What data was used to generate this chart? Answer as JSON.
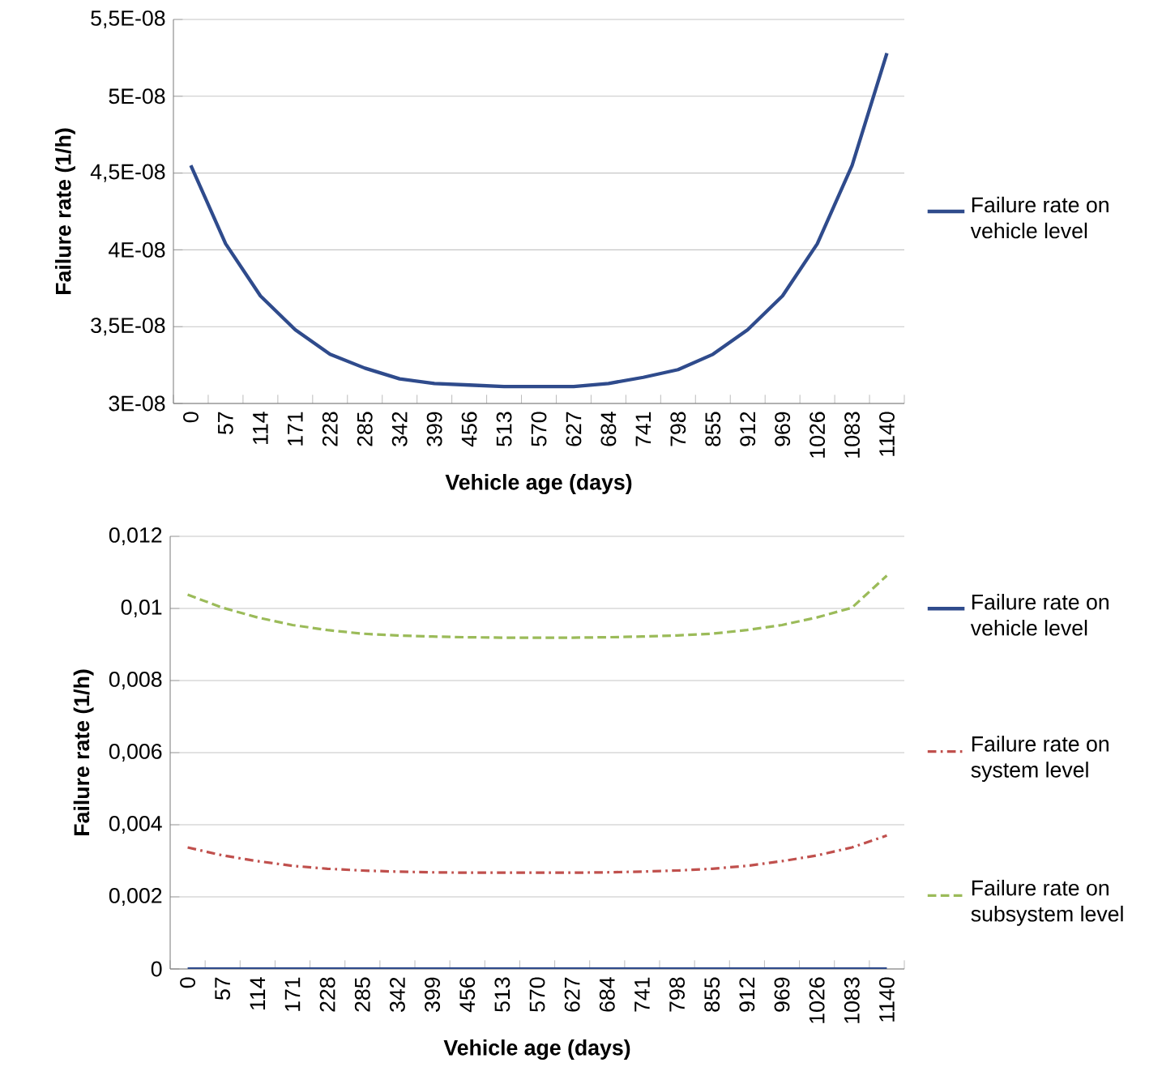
{
  "chart_data": [
    {
      "type": "line",
      "xlabel": "Vehicle age (days)",
      "ylabel": "Failure rate (1/h)",
      "categories": [
        "0",
        "57",
        "114",
        "171",
        "228",
        "285",
        "342",
        "399",
        "456",
        "513",
        "570",
        "627",
        "684",
        "741",
        "798",
        "855",
        "912",
        "969",
        "1026",
        "1083",
        "1140"
      ],
      "series": [
        {
          "name": "Failure rate on vehicle level",
          "color": "#2f4b8c",
          "line_style": "solid",
          "values": [
            4.55e-08,
            4.04e-08,
            3.7e-08,
            3.48e-08,
            3.32e-08,
            3.23e-08,
            3.16e-08,
            3.13e-08,
            3.12e-08,
            3.11e-08,
            3.11e-08,
            3.11e-08,
            3.13e-08,
            3.17e-08,
            3.22e-08,
            3.32e-08,
            3.48e-08,
            3.7e-08,
            4.04e-08,
            4.55e-08,
            5.28e-08
          ]
        }
      ],
      "ylim": [
        3e-08,
        5.5e-08
      ],
      "yticks": [
        {
          "value": 3e-08,
          "label": "3E-08"
        },
        {
          "value": 3.5e-08,
          "label": "3,5E-08"
        },
        {
          "value": 4e-08,
          "label": "4E-08"
        },
        {
          "value": 4.5e-08,
          "label": "4,5E-08"
        },
        {
          "value": 5e-08,
          "label": "5E-08"
        },
        {
          "value": 5.5e-08,
          "label": "5,5E-08"
        }
      ],
      "grid": "y",
      "legend": "right",
      "marker": "none"
    },
    {
      "type": "line",
      "xlabel": "Vehicle age (days)",
      "ylabel": "Failure rate (1/h)",
      "categories": [
        "0",
        "57",
        "114",
        "171",
        "228",
        "285",
        "342",
        "399",
        "456",
        "513",
        "570",
        "627",
        "684",
        "741",
        "798",
        "855",
        "912",
        "969",
        "1026",
        "1083",
        "1140"
      ],
      "series": [
        {
          "name": "Failure rate on vehicle level",
          "color": "#2f4b8c",
          "line_style": "solid",
          "values": [
            0,
            0,
            0,
            0,
            0,
            0,
            0,
            0,
            0,
            0,
            0,
            0,
            0,
            0,
            0,
            0,
            0,
            0,
            0,
            0,
            0
          ]
        },
        {
          "name": "Failure rate on system level",
          "color": "#c0504d",
          "line_style": "dashdot",
          "values": [
            0.00337,
            0.00315,
            0.00299,
            0.00286,
            0.00278,
            0.00273,
            0.0027,
            0.00268,
            0.00267,
            0.00267,
            0.00267,
            0.00267,
            0.00268,
            0.0027,
            0.00273,
            0.00278,
            0.00286,
            0.00299,
            0.00315,
            0.00337,
            0.0037
          ]
        },
        {
          "name": "Failure rate on subsystem level",
          "color": "#9bbb59",
          "line_style": "dashed",
          "values": [
            0.01038,
            0.01002,
            0.00975,
            0.00954,
            0.0094,
            0.0093,
            0.00925,
            0.00922,
            0.0092,
            0.00919,
            0.00919,
            0.00919,
            0.0092,
            0.00922,
            0.00925,
            0.0093,
            0.0094,
            0.00954,
            0.00975,
            0.01002,
            0.01091
          ]
        }
      ],
      "ylim": [
        0,
        0.012
      ],
      "yticks": [
        0,
        {
          "value": 0.002,
          "label": "0,002"
        },
        {
          "value": 0.004,
          "label": "0,004"
        },
        {
          "value": 0.006,
          "label": "0,006"
        },
        {
          "value": 0.008,
          "label": "0,008"
        },
        {
          "value": 0.01,
          "label": "0,01"
        },
        {
          "value": 0.012,
          "label": "0,012"
        }
      ],
      "grid": "y",
      "legend": "right",
      "marker": "none"
    }
  ]
}
